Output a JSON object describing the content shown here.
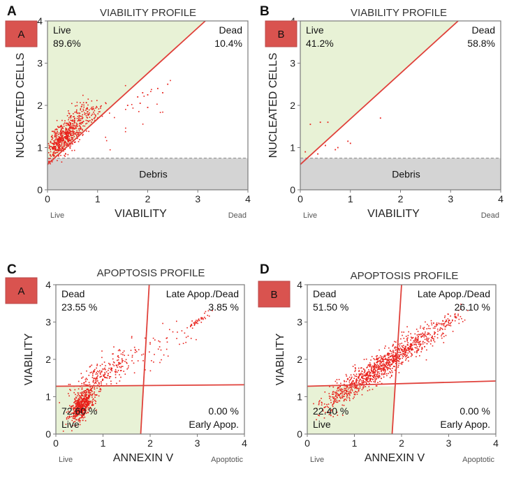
{
  "colors": {
    "frame": "#7a7a7a",
    "gate": "#e0403a",
    "dot": "#e8201a",
    "live_fill": "#e8f2d6",
    "debris_fill": "#d4d4d4",
    "badge_fill": "#d9534f",
    "badge_edge": "#b94a48"
  },
  "chart_data": [
    {
      "type": "scatter",
      "panel_letter": "A",
      "badge": "A",
      "title": "VIABILITY PROFILE",
      "xlabel": "VIABILITY",
      "ylabel": "NUCLEATED CELLS",
      "xlim": [
        0,
        4
      ],
      "ylim": [
        0,
        4
      ],
      "x_ticks": [
        "0",
        "1",
        "2",
        "3",
        "4"
      ],
      "y_ticks": [
        "0",
        "1",
        "2",
        "3",
        "4"
      ],
      "x_axis_left": "Live",
      "x_axis_right": "Dead",
      "gate_kind": "viability",
      "debris_level": 0.75,
      "diagonal": {
        "x0": 0,
        "y0": 0.6,
        "x1": 3.15,
        "y1": 4
      },
      "regions": [
        {
          "name": "Live",
          "value": "89.6%",
          "pos": "top-left"
        },
        {
          "name": "Dead",
          "value": "10.4%",
          "pos": "top-right"
        }
      ],
      "debris_label": "Debris",
      "clusters": [
        {
          "n": 560,
          "cx": 0.3,
          "cy": 1.2,
          "sx": 0.2,
          "sy": 0.25,
          "corr": 0.7
        },
        {
          "n": 150,
          "cx": 0.7,
          "cy": 1.75,
          "sx": 0.22,
          "sy": 0.2,
          "corr": 0.5
        },
        {
          "n": 25,
          "cx": 1.5,
          "cy": 1.7,
          "sx": 0.5,
          "sy": 0.5,
          "corr": 0.6
        }
      ],
      "points": [
        [
          1.8,
          2.2
        ],
        [
          1.9,
          2.3
        ],
        [
          2.0,
          2.25
        ],
        [
          2.2,
          2.4
        ],
        [
          2.4,
          2.5
        ],
        [
          1.85,
          2.05
        ],
        [
          2.0,
          1.95
        ],
        [
          2.3,
          2.3
        ],
        [
          1.6,
          2.0
        ]
      ]
    },
    {
      "type": "scatter",
      "panel_letter": "B",
      "badge": "B",
      "title": "VIABILITY PROFILE",
      "xlabel": "VIABILITY",
      "ylabel": "NUCLEATED CELLS",
      "xlim": [
        0,
        4
      ],
      "ylim": [
        0,
        4
      ],
      "x_ticks": [
        "0",
        "1",
        "2",
        "3",
        "4"
      ],
      "y_ticks": [
        "0",
        "1",
        "2",
        "3",
        "4"
      ],
      "x_axis_left": "Live",
      "x_axis_right": "Dead",
      "gate_kind": "viability",
      "debris_level": 0.75,
      "diagonal": {
        "x0": 0,
        "y0": 0.6,
        "x1": 3.15,
        "y1": 4
      },
      "regions": [
        {
          "name": "Live",
          "value": "41.2%",
          "pos": "top-left"
        },
        {
          "name": "Dead",
          "value": "58.8%",
          "pos": "top-right"
        }
      ],
      "debris_label": "Debris",
      "clusters": [],
      "points": [
        [
          0.4,
          1.6
        ],
        [
          0.55,
          1.6
        ],
        [
          0.2,
          1.55
        ],
        [
          1.6,
          1.7
        ],
        [
          0.95,
          1.15
        ],
        [
          1.0,
          1.1
        ],
        [
          0.7,
          0.95
        ],
        [
          0.35,
          0.85
        ],
        [
          0.1,
          0.9
        ],
        [
          0.5,
          1.05
        ],
        [
          0.75,
          1.0
        ]
      ]
    },
    {
      "type": "scatter",
      "panel_letter": "C",
      "badge": "A",
      "title": "APOPTOSIS PROFILE",
      "xlabel": "ANNEXIN V",
      "ylabel": "VIABILITY",
      "xlim": [
        0,
        4
      ],
      "ylim": [
        0,
        4
      ],
      "x_ticks": [
        "0",
        "1",
        "2",
        "3",
        "4"
      ],
      "y_ticks": [
        "0",
        "1",
        "2",
        "3",
        "4"
      ],
      "x_axis_left": "Live",
      "x_axis_right": "Apoptotic",
      "gate_kind": "quadrant",
      "gate_x": {
        "bottom": 1.8,
        "top": 1.98
      },
      "gate_y": {
        "left": 1.28,
        "right": 1.32
      },
      "regions": [
        {
          "name": "Dead",
          "value": "23.55 %",
          "pos": "top-left"
        },
        {
          "name": "Late Apop./Dead",
          "value": "3.85 %",
          "pos": "top-right"
        },
        {
          "name": "Live",
          "value": "72.60 %",
          "pos": "bottom-left"
        },
        {
          "name": "Early Apop.",
          "value": "0.00 %",
          "pos": "bottom-right"
        }
      ],
      "clusters": [
        {
          "n": 520,
          "cx": 0.55,
          "cy": 0.75,
          "sx": 0.13,
          "sy": 0.22,
          "corr": 0.6
        },
        {
          "n": 260,
          "cx": 1.05,
          "cy": 1.6,
          "sx": 0.38,
          "sy": 0.38,
          "corr": 0.8
        },
        {
          "n": 50,
          "cx": 2.25,
          "cy": 2.4,
          "sx": 0.45,
          "sy": 0.4,
          "corr": 0.85
        },
        {
          "n": 35,
          "cx": 3.05,
          "cy": 3.05,
          "sx": 0.1,
          "sy": 0.1,
          "corr": 0.9
        }
      ],
      "points": []
    },
    {
      "type": "scatter",
      "panel_letter": "D",
      "badge": "B",
      "title": "APOPTOSIS PROFILE",
      "xlabel": "ANNEXIN V",
      "ylabel": "VIABILITY",
      "xlim": [
        0,
        4
      ],
      "ylim": [
        0,
        4
      ],
      "x_ticks": [
        "0",
        "1",
        "2",
        "3",
        "4"
      ],
      "y_ticks": [
        "0",
        "1",
        "2",
        "3",
        "4"
      ],
      "x_axis_left": "Live",
      "x_axis_right": "Apoptotic",
      "gate_kind": "quadrant",
      "gate_x": {
        "bottom": 1.8,
        "top": 2.0
      },
      "gate_y": {
        "left": 1.28,
        "right": 1.42
      },
      "regions": [
        {
          "name": "Dead",
          "value": "51.50 %",
          "pos": "top-left"
        },
        {
          "name": "Late Apop./Dead",
          "value": "26.10 %",
          "pos": "top-right"
        },
        {
          "name": "Live",
          "value": "22.40 %",
          "pos": "bottom-left"
        },
        {
          "name": "Early Apop.",
          "value": "0.00 %",
          "pos": "bottom-right"
        }
      ],
      "clusters": [
        {
          "n": 200,
          "cx": 0.75,
          "cy": 1.15,
          "sx": 0.28,
          "sy": 0.32,
          "corr": 0.8
        },
        {
          "n": 700,
          "cx": 1.6,
          "cy": 1.85,
          "sx": 0.42,
          "sy": 0.42,
          "corr": 0.9
        },
        {
          "n": 180,
          "cx": 2.45,
          "cy": 2.5,
          "sx": 0.35,
          "sy": 0.3,
          "corr": 0.85
        },
        {
          "n": 40,
          "cx": 3.05,
          "cy": 3.05,
          "sx": 0.18,
          "sy": 0.15,
          "corr": 0.8
        }
      ],
      "points": []
    }
  ]
}
